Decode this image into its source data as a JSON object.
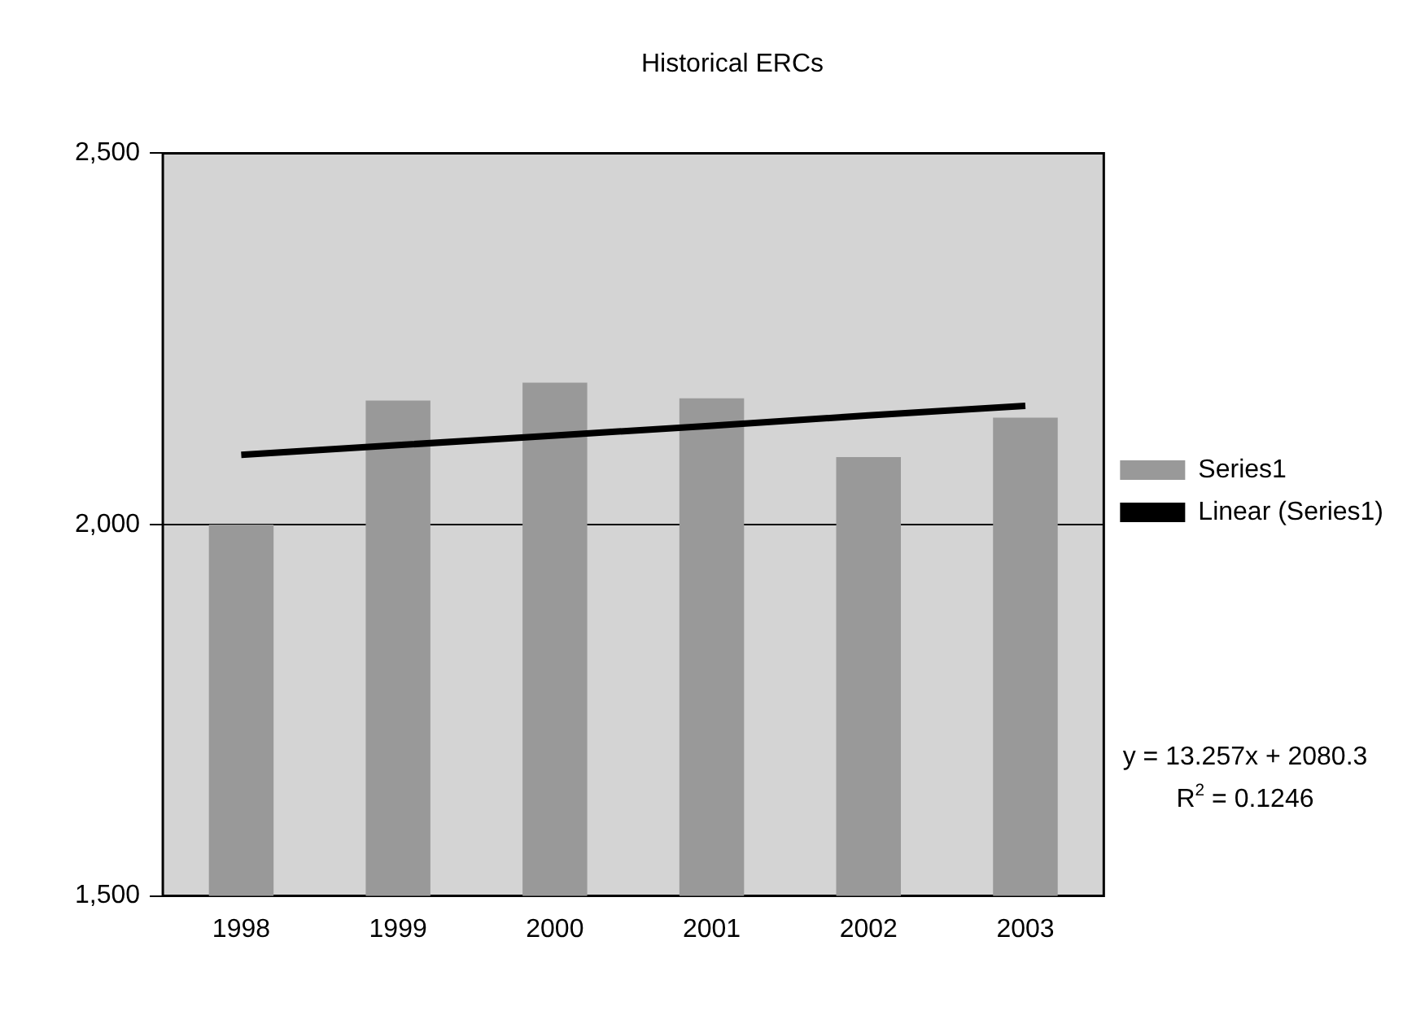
{
  "chart_data": {
    "type": "bar",
    "title": "Historical ERCs",
    "categories": [
      "1998",
      "1999",
      "2000",
      "2001",
      "2002",
      "2003"
    ],
    "series": [
      {
        "name": "Series1",
        "color": "#999999",
        "values": [
          2000,
          2167,
          2191,
          2170,
          2091,
          2144
        ]
      },
      {
        "name": "Linear (Series1)",
        "type": "line",
        "color": "#000000",
        "values": [
          2094,
          2107,
          2120,
          2133,
          2147,
          2160
        ]
      }
    ],
    "ylim": [
      1500,
      2500
    ],
    "yticks": [
      {
        "value": 1500,
        "label": "1,500"
      },
      {
        "value": 2000,
        "label": "2,000"
      },
      {
        "value": 2500,
        "label": "2,500"
      }
    ],
    "grid": "y",
    "legend": "right",
    "marker": "none",
    "annotations": [
      "y = 13.257x + 2080.3",
      "R$^{2}$ = 0.1246"
    ]
  }
}
